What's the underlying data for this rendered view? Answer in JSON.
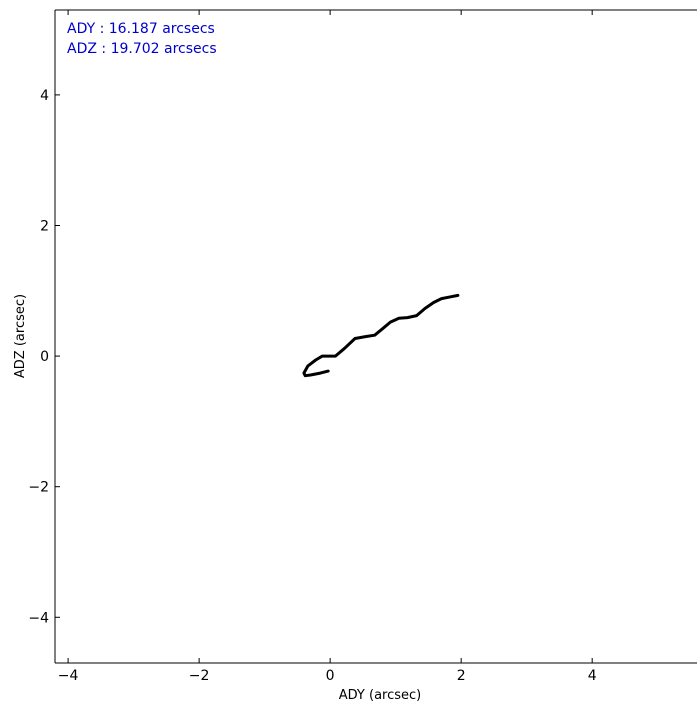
{
  "chart_data": {
    "type": "line",
    "title": "",
    "xlabel": "ADY (arcsec)",
    "ylabel": "ADZ (arcsec)",
    "xlim": [
      -4.2,
      5.6
    ],
    "ylim": [
      -4.7,
      5.3
    ],
    "xticks": [
      -4,
      -2,
      0,
      2,
      4
    ],
    "yticks": [
      -4,
      -2,
      0,
      2,
      4
    ],
    "xtick_labels": [
      "−4",
      "−2",
      "0",
      "2",
      "4"
    ],
    "ytick_labels": [
      "−4",
      "−2",
      "0",
      "2",
      "4"
    ],
    "grid": false,
    "annotations": [
      "ADY : 16.187 arcsecs",
      "ADZ : 19.702 arcsecs"
    ],
    "series": [
      {
        "color": "#000000",
        "x": [
          -0.03,
          -0.15,
          -0.3,
          -0.38,
          -0.4,
          -0.34,
          -0.22,
          -0.12,
          0.08,
          0.22,
          0.38,
          0.55,
          0.68,
          0.8,
          0.92,
          1.05,
          1.18,
          1.32,
          1.45,
          1.58,
          1.7,
          1.85,
          1.95
        ],
        "y": [
          -0.23,
          -0.26,
          -0.29,
          -0.3,
          -0.26,
          -0.15,
          -0.06,
          0.0,
          0.0,
          0.12,
          0.27,
          0.3,
          0.32,
          0.42,
          0.52,
          0.58,
          0.59,
          0.62,
          0.73,
          0.82,
          0.88,
          0.91,
          0.93
        ]
      }
    ]
  }
}
